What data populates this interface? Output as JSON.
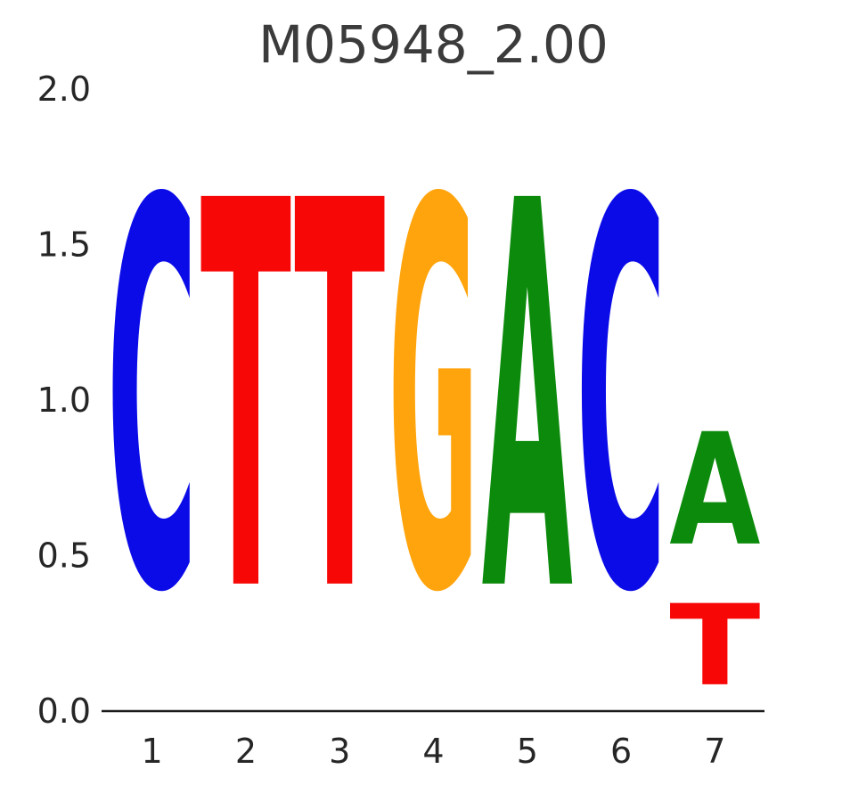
{
  "title": "M05948_2.00",
  "chart_data": {
    "type": "sequence_logo",
    "title": "M05948_2.00",
    "xlabel": "",
    "ylabel": "",
    "ylim": [
      0,
      2.0
    ],
    "grid": false,
    "legend": "none",
    "y_ticks": [
      0.0,
      0.5,
      1.0,
      1.5,
      2.0
    ],
    "y_tick_labels": [
      "0.0",
      "0.5",
      "1.0",
      "1.5",
      "2.0"
    ],
    "x_tick_labels": [
      "1",
      "2",
      "3",
      "4",
      "5",
      "6",
      "7"
    ],
    "colors": {
      "A": "#0c8a0c",
      "C": "#0b0be8",
      "G": "#ffa40d",
      "T": "#f80707"
    },
    "positions": [
      {
        "position": 1,
        "stack": [
          {
            "letter": "C",
            "value": 2.0
          }
        ]
      },
      {
        "position": 2,
        "stack": [
          {
            "letter": "T",
            "value": 2.0
          }
        ]
      },
      {
        "position": 3,
        "stack": [
          {
            "letter": "T",
            "value": 2.0
          }
        ]
      },
      {
        "position": 4,
        "stack": [
          {
            "letter": "G",
            "value": 2.0
          }
        ]
      },
      {
        "position": 5,
        "stack": [
          {
            "letter": "A",
            "value": 2.0
          }
        ]
      },
      {
        "position": 6,
        "stack": [
          {
            "letter": "C",
            "value": 2.0
          }
        ]
      },
      {
        "position": 7,
        "stack": [
          {
            "letter": "T",
            "value": 0.42
          },
          {
            "letter": "A",
            "value": 0.58
          }
        ]
      }
    ]
  }
}
